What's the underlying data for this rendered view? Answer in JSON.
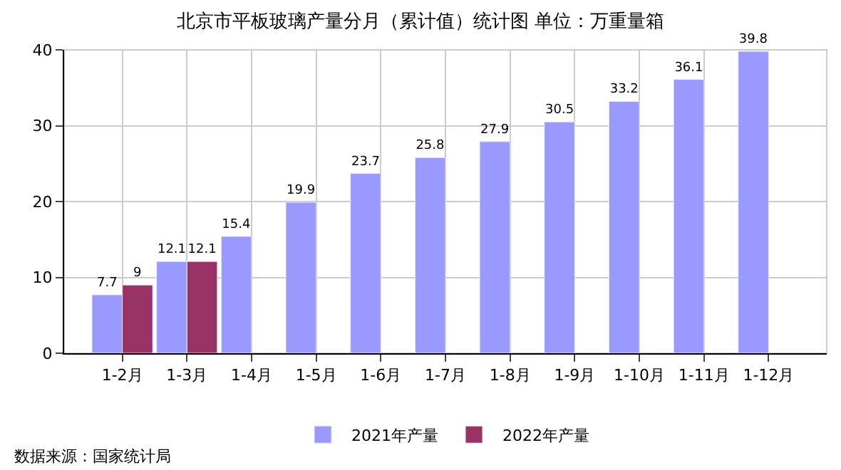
{
  "chart_data": {
    "type": "bar",
    "title": "北京市平板玻璃产量分月（累计值）统计图 单位：万重量箱",
    "categories": [
      "1-2月",
      "1-3月",
      "1-4月",
      "1-5月",
      "1-6月",
      "1-7月",
      "1-8月",
      "1-9月",
      "1-10月",
      "1-11月",
      "1-12月"
    ],
    "series": [
      {
        "name": "2021年产量",
        "color": "#9999ff",
        "values": [
          7.7,
          12.1,
          15.4,
          19.9,
          23.7,
          25.8,
          27.9,
          30.5,
          33.2,
          36.1,
          39.8
        ]
      },
      {
        "name": "2022年产量",
        "color": "#993366",
        "values": [
          9,
          12.1,
          null,
          null,
          null,
          null,
          null,
          null,
          null,
          null,
          null
        ]
      }
    ],
    "ylim": [
      0,
      40
    ],
    "yticks": [
      0,
      10,
      20,
      30,
      40
    ],
    "grid": true,
    "legend": "bottom",
    "data_labels": true,
    "annotations": [
      "数据来源：国家统计局"
    ]
  }
}
